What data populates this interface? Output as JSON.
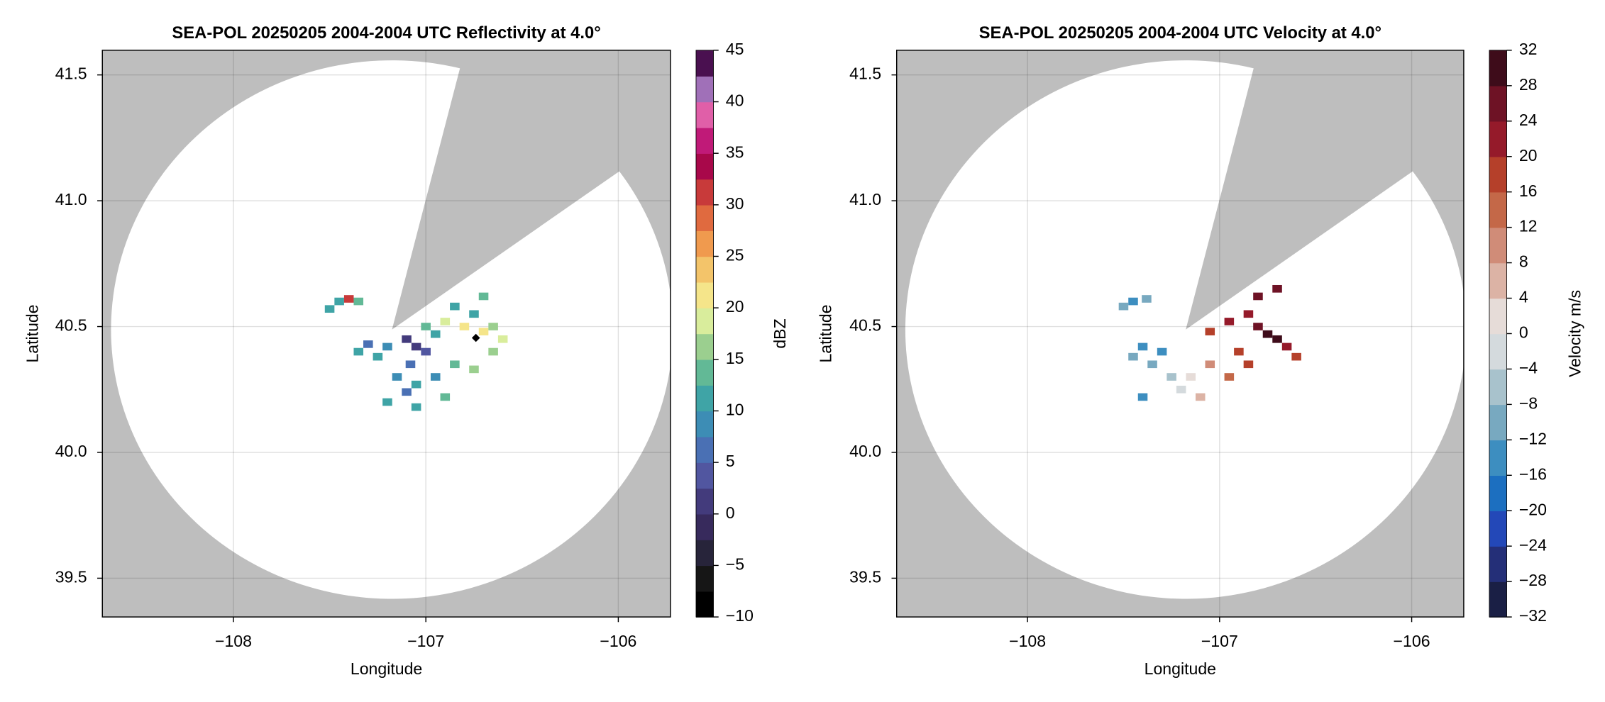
{
  "chart_data": [
    {
      "type": "radar",
      "title": "SEA-POL 20250205 2004-2004 UTC Reflectivity at 4.0°",
      "x_label": "Longitude",
      "y_label": "Latitude",
      "xlim": [
        -108.681,
        -105.729
      ],
      "ylim": [
        39.346,
        41.598
      ],
      "xticks": [
        {
          "value": -108,
          "label": "−108"
        },
        {
          "value": -107,
          "label": "−107"
        },
        {
          "value": -106,
          "label": "−106"
        }
      ],
      "yticks": [
        39.5,
        {
          "value": 40,
          "label": "40.0"
        },
        40.5,
        {
          "value": 41,
          "label": "41.0"
        },
        41.5
      ],
      "grid": true,
      "coverage": {
        "center": [
          -107.176,
          40.488
        ],
        "radius_lon": 1.46,
        "radius_lat": 1.07,
        "blocked_azimuth": [
          14,
          54
        ]
      },
      "marker": {
        "lon": -106.74,
        "lat": 40.455
      },
      "colorbar": {
        "label": "dBZ",
        "clim": [
          -10,
          45
        ],
        "ticks": [
          {
            "value": -10,
            "label": "−10"
          },
          {
            "value": -5,
            "label": "−5"
          },
          0,
          5,
          10,
          15,
          20,
          25,
          30,
          35,
          40,
          45
        ],
        "colors": [
          "#000000",
          "#161616",
          "#27243a",
          "#372a5c",
          "#433b7c",
          "#5156a0",
          "#4a70b4",
          "#3d8db5",
          "#3fa4a6",
          "#62b996",
          "#9bcf8f",
          "#d9ed9c",
          "#f5e58a",
          "#f3c46a",
          "#f09a4e",
          "#e06a3f",
          "#c83a3a",
          "#a8084a",
          "#c01a78",
          "#e05fa8",
          "#a070b8",
          "#4a1050"
        ]
      },
      "cells": {
        "lon": [
          -107.45,
          -107.4,
          -107.35,
          -107.5,
          -107.2,
          -107.3,
          -107.35,
          -107.25,
          -107.1,
          -107.05,
          -107.0,
          -107.08,
          -107.0,
          -106.9,
          -106.8,
          -106.7,
          -106.65,
          -106.75,
          -106.85,
          -106.7,
          -106.95,
          -106.6,
          -106.65,
          -107.15,
          -107.05,
          -106.95,
          -106.85,
          -107.2,
          -107.05,
          -106.9,
          -107.1,
          -106.75
        ],
        "lat": [
          40.6,
          40.61,
          40.6,
          40.57,
          40.42,
          40.43,
          40.4,
          40.38,
          40.45,
          40.42,
          40.4,
          40.35,
          40.5,
          40.52,
          40.5,
          40.48,
          40.5,
          40.55,
          40.58,
          40.62,
          40.47,
          40.45,
          40.4,
          40.3,
          40.27,
          40.3,
          40.35,
          40.2,
          40.18,
          40.22,
          40.24,
          40.33
        ],
        "values": [
          12,
          30,
          14,
          10,
          8,
          6,
          12,
          10,
          2,
          0,
          3,
          5,
          14,
          18,
          20,
          22,
          16,
          12,
          10,
          14,
          12,
          18,
          15,
          9,
          11,
          8,
          13,
          10,
          12,
          14,
          6,
          16
        ]
      }
    },
    {
      "type": "radar",
      "title": "SEA-POL 20250205 2004-2004 UTC Velocity at 4.0°",
      "x_label": "Longitude",
      "y_label": "Latitude",
      "xlim": [
        -108.681,
        -105.729
      ],
      "ylim": [
        39.346,
        41.598
      ],
      "xticks": [
        {
          "value": -108,
          "label": "−108"
        },
        {
          "value": -107,
          "label": "−107"
        },
        {
          "value": -106,
          "label": "−106"
        }
      ],
      "yticks": [
        39.5,
        {
          "value": 40,
          "label": "40.0"
        },
        40.5,
        {
          "value": 41,
          "label": "41.0"
        },
        41.5
      ],
      "grid": true,
      "coverage": {
        "center": [
          -107.176,
          40.488
        ],
        "radius_lon": 1.46,
        "radius_lat": 1.07,
        "blocked_azimuth": [
          14,
          54
        ]
      },
      "colorbar": {
        "label": "Velocity m/s",
        "clim": [
          -32,
          32
        ],
        "ticks": [
          {
            "value": -32,
            "label": "−32"
          },
          {
            "value": -28,
            "label": "−28"
          },
          {
            "value": -24,
            "label": "−24"
          },
          {
            "value": -20,
            "label": "−20"
          },
          {
            "value": -16,
            "label": "−16"
          },
          {
            "value": -12,
            "label": "−12"
          },
          {
            "value": -8,
            "label": "−8"
          },
          {
            "value": -4,
            "label": "−4"
          },
          0,
          4,
          8,
          12,
          16,
          20,
          24,
          28,
          32
        ],
        "colors": [
          "#1a1f45",
          "#242f78",
          "#2348b8",
          "#1c6fc0",
          "#3d8ec0",
          "#78a9c0",
          "#a8c2cc",
          "#d4dadd",
          "#e6dcd8",
          "#dcb3a5",
          "#d08c78",
          "#c46848",
          "#b5402a",
          "#951a2a",
          "#6e1225",
          "#3e0c1a"
        ]
      },
      "cells": {
        "lon": [
          -107.45,
          -107.38,
          -107.5,
          -107.4,
          -107.3,
          -107.45,
          -107.35,
          -107.25,
          -107.4,
          -107.2,
          -107.15,
          -107.1,
          -107.05,
          -106.95,
          -106.85,
          -106.9,
          -107.05,
          -106.95,
          -106.85,
          -106.8,
          -106.75,
          -106.7,
          -106.8,
          -106.7,
          -106.65,
          -106.6
        ],
        "lat": [
          40.6,
          40.61,
          40.58,
          40.42,
          40.4,
          40.38,
          40.35,
          40.3,
          40.22,
          40.25,
          40.3,
          40.22,
          40.35,
          40.3,
          40.35,
          40.4,
          40.48,
          40.52,
          40.55,
          40.5,
          40.47,
          40.45,
          40.62,
          40.65,
          40.42,
          40.38
        ],
        "values": [
          -14,
          -12,
          -10,
          -16,
          -14,
          -12,
          -10,
          -8,
          -16,
          -4,
          0,
          4,
          8,
          12,
          16,
          18,
          18,
          20,
          22,
          24,
          30,
          28,
          26,
          24,
          22,
          16
        ]
      }
    }
  ]
}
